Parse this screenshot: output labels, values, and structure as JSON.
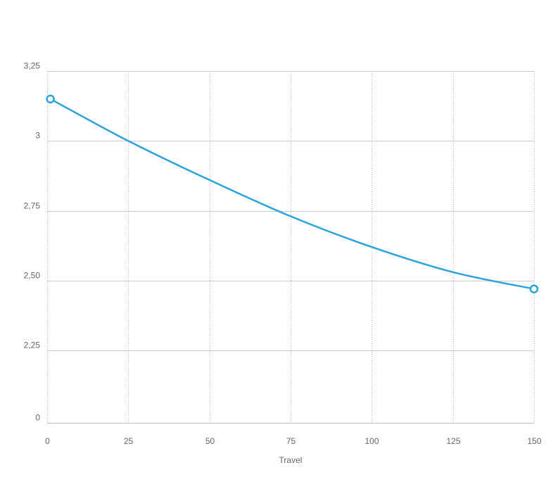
{
  "chart_data": {
    "type": "line",
    "title": "",
    "xlabel": "Travel",
    "ylabel": "",
    "xlim": [
      0,
      150
    ],
    "x_ticks": [
      0,
      25,
      50,
      75,
      100,
      125,
      150
    ],
    "x_tick_labels": [
      "0",
      "25",
      "50",
      "75",
      "100",
      "125",
      "150"
    ],
    "y_ticks": [
      0,
      2.25,
      2.5,
      2.75,
      3,
      3.25
    ],
    "y_tick_labels": [
      "0",
      "2,25",
      "2,50",
      "2,75",
      "3",
      "3,25"
    ],
    "y_axis_break": "broken axis between 0 and 2,25",
    "grid": true,
    "legend": "none",
    "series": [
      {
        "color": "#2ba3dc",
        "x": [
          1,
          25,
          50,
          75,
          100,
          125,
          150
        ],
        "y": [
          3.15,
          3.0,
          2.86,
          2.73,
          2.62,
          2.53,
          2.47
        ],
        "markers": "endpoints"
      }
    ]
  }
}
